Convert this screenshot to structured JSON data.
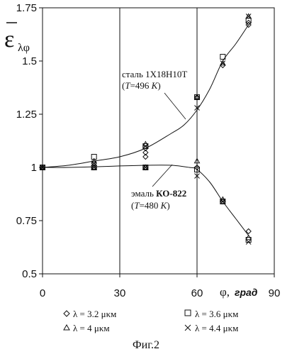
{
  "chart_data": {
    "type": "scatter",
    "ylabel_symbol": "ε",
    "ylabel_sub": "λφ",
    "xlabel_symbol": "φ,",
    "xlabel_unit": "град",
    "xlim": [
      0,
      90
    ],
    "ylim": [
      0.5,
      1.75
    ],
    "xticks": [
      "0",
      "30",
      "60",
      "90"
    ],
    "yticks": [
      "0.5",
      "0.75",
      "1",
      "1.25",
      "1.5",
      "1.75"
    ],
    "grid": "vertical",
    "annotations": {
      "steel_line1": "сталь 1Х18Н10Т",
      "steel_line2_open": "(",
      "steel_line2_t": "T",
      "steel_line2_rest": "=496 ",
      "steel_line2_k": "K",
      "steel_line2_close": ")",
      "enamel_line1_a": "эмаль ",
      "enamel_line1_b": "КО-822",
      "enamel_line2_open": "(",
      "enamel_line2_t": "T",
      "enamel_line2_rest": "=480 ",
      "enamel_line2_k": "K",
      "enamel_line2_close": ")"
    },
    "legend": [
      {
        "marker": "diamond",
        "label": "λ = 3.2 μκм"
      },
      {
        "marker": "square",
        "label": "λ = 3.6 μκм"
      },
      {
        "marker": "triangle",
        "label": "λ = 4 μκм"
      },
      {
        "marker": "cross",
        "label": "λ = 4.4 μκм"
      }
    ],
    "series": [
      {
        "name": "λ = 3.2 μκм",
        "marker": "diamond",
        "points": [
          [
            0,
            1.0
          ],
          [
            20,
            1.02
          ],
          [
            20,
            1.0
          ],
          [
            40,
            1.05
          ],
          [
            40,
            1.07
          ],
          [
            40,
            1.09
          ],
          [
            40,
            1.0
          ],
          [
            60,
            1.33
          ],
          [
            60,
            1.0
          ],
          [
            70,
            1.48
          ],
          [
            70,
            0.84
          ],
          [
            80,
            1.67
          ],
          [
            80,
            1.68
          ],
          [
            80,
            0.7
          ]
        ]
      },
      {
        "name": "λ = 3.6 μκм",
        "marker": "square",
        "points": [
          [
            0,
            1.0
          ],
          [
            20,
            1.05
          ],
          [
            20,
            1.0
          ],
          [
            40,
            1.1
          ],
          [
            40,
            1.0
          ],
          [
            60,
            1.33
          ],
          [
            60,
            0.99
          ],
          [
            70,
            1.52
          ],
          [
            70,
            0.84
          ],
          [
            80,
            1.69
          ],
          [
            80,
            0.66
          ]
        ]
      },
      {
        "name": "λ = 4 μκм",
        "marker": "triangle",
        "points": [
          [
            0,
            1.0
          ],
          [
            20,
            1.03
          ],
          [
            20,
            1.0
          ],
          [
            40,
            1.11
          ],
          [
            40,
            1.0
          ],
          [
            60,
            1.03
          ],
          [
            60,
            1.33
          ],
          [
            70,
            1.49
          ],
          [
            70,
            0.85
          ],
          [
            80,
            1.71
          ],
          [
            80,
            0.67
          ]
        ]
      },
      {
        "name": "λ = 4.4 μκм",
        "marker": "cross",
        "points": [
          [
            0,
            1.0
          ],
          [
            20,
            1.02
          ],
          [
            20,
            1.0
          ],
          [
            40,
            1.1
          ],
          [
            40,
            1.0
          ],
          [
            60,
            1.28
          ],
          [
            60,
            0.96
          ],
          [
            70,
            1.49
          ],
          [
            70,
            0.84
          ],
          [
            80,
            1.71
          ],
          [
            80,
            0.65
          ]
        ]
      }
    ],
    "curves": [
      {
        "name": "сталь 1Х18Н10Т",
        "points": [
          [
            0,
            1.0
          ],
          [
            10,
            1.01
          ],
          [
            20,
            1.03
          ],
          [
            30,
            1.05
          ],
          [
            40,
            1.09
          ],
          [
            50,
            1.16
          ],
          [
            55,
            1.2
          ],
          [
            60,
            1.27
          ],
          [
            65,
            1.37
          ],
          [
            70,
            1.5
          ],
          [
            75,
            1.58
          ],
          [
            80,
            1.67
          ]
        ]
      },
      {
        "name": "эмаль КО-822",
        "points": [
          [
            0,
            1.0
          ],
          [
            10,
            1.0
          ],
          [
            20,
            1.003
          ],
          [
            30,
            1.007
          ],
          [
            40,
            1.01
          ],
          [
            50,
            1.01
          ],
          [
            57,
            1.0
          ],
          [
            60,
            0.99
          ],
          [
            65,
            0.93
          ],
          [
            70,
            0.84
          ],
          [
            75,
            0.76
          ],
          [
            80,
            0.68
          ]
        ]
      }
    ]
  },
  "caption": "Фиг.2"
}
